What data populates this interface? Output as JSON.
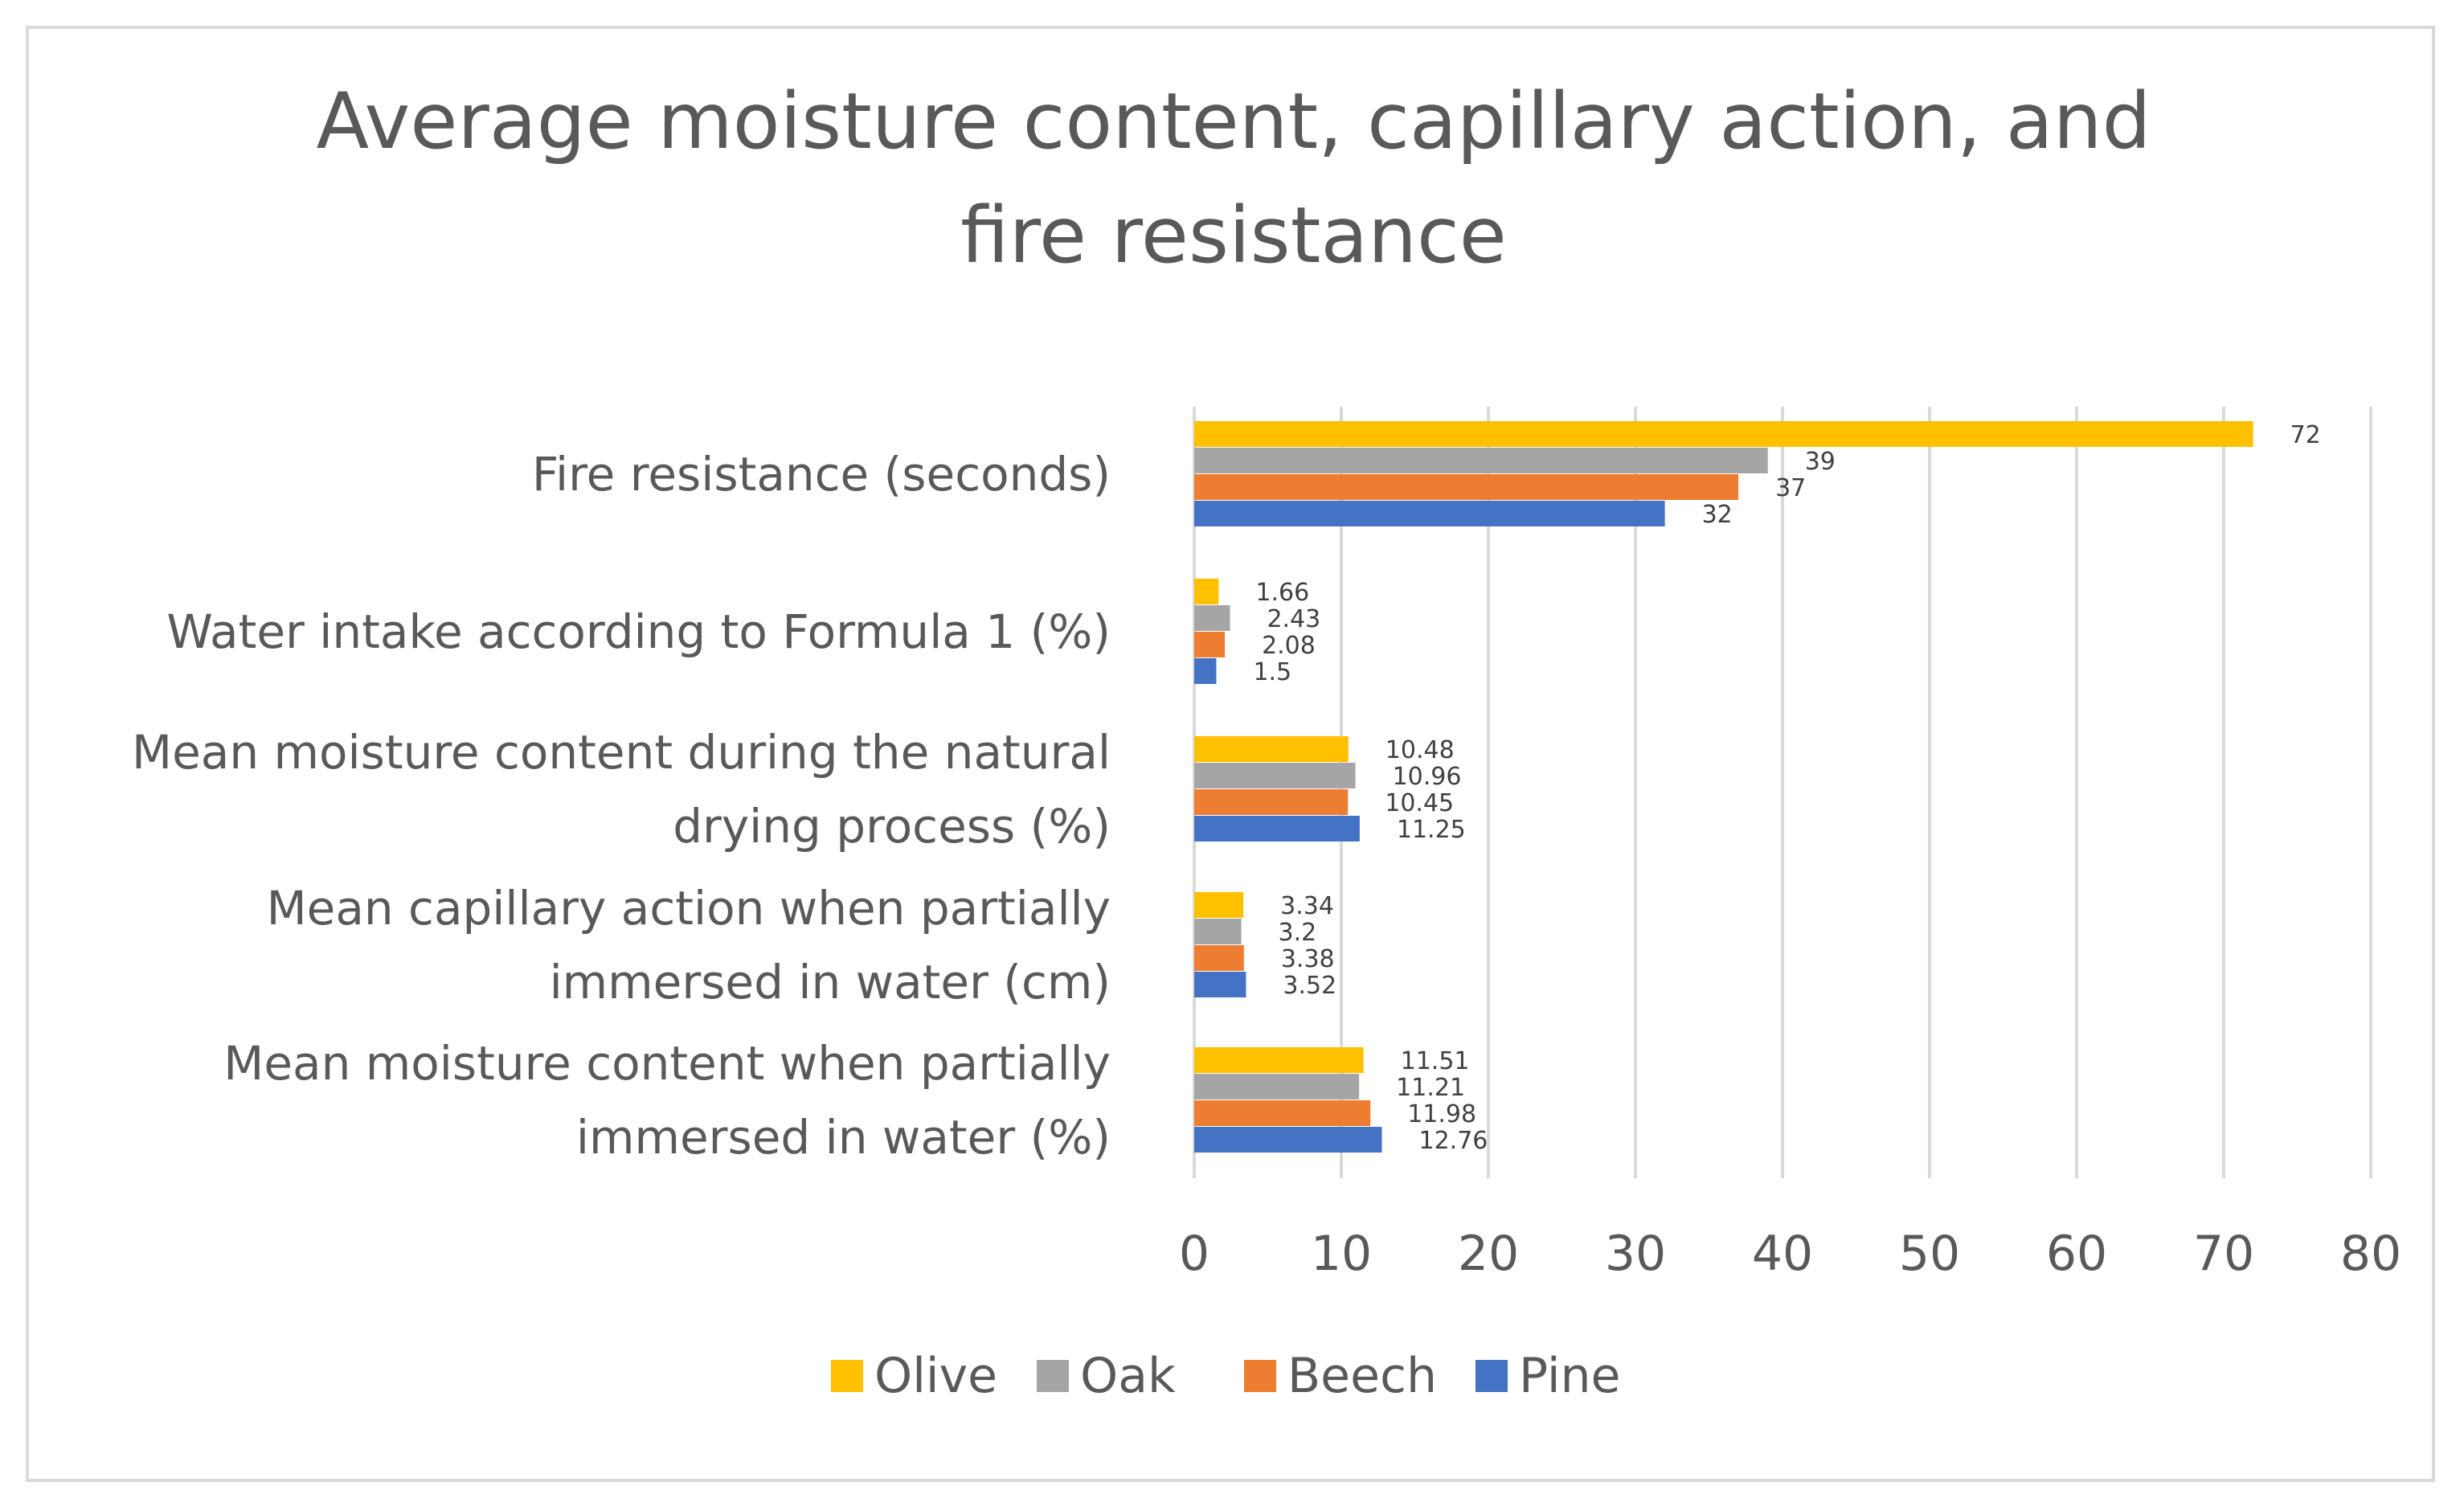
{
  "chart_data": {
    "type": "bar",
    "orientation": "horizontal",
    "title_lines": [
      "Average moisture content, capillary action, and",
      "fire resistance"
    ],
    "categories": [
      [
        "Fire resistance (seconds)"
      ],
      [
        "Water intake according to Formula 1 (%)"
      ],
      [
        "Mean moisture content during the natural",
        "drying process (%)"
      ],
      [
        "Mean capillary action when partially",
        "immersed in water (cm)"
      ],
      [
        "Mean moisture content when partially",
        "immersed in water (%)"
      ]
    ],
    "series": [
      {
        "name": "Olive",
        "color": "#ffc000",
        "values": [
          72,
          1.66,
          10.48,
          3.34,
          11.51
        ]
      },
      {
        "name": "Oak",
        "color": "#a5a5a5",
        "values": [
          39,
          2.43,
          10.96,
          3.2,
          11.21
        ]
      },
      {
        "name": "Beech",
        "color": "#ed7d31",
        "values": [
          37,
          2.08,
          10.45,
          3.38,
          11.98
        ]
      },
      {
        "name": "Pine",
        "color": "#4472c4",
        "values": [
          32,
          1.5,
          11.25,
          3.52,
          12.76
        ]
      }
    ],
    "xlim": [
      0,
      80
    ],
    "xticks": [
      0,
      10,
      20,
      30,
      40,
      50,
      60,
      70,
      80
    ],
    "grid": true,
    "legend_position": "bottom"
  }
}
